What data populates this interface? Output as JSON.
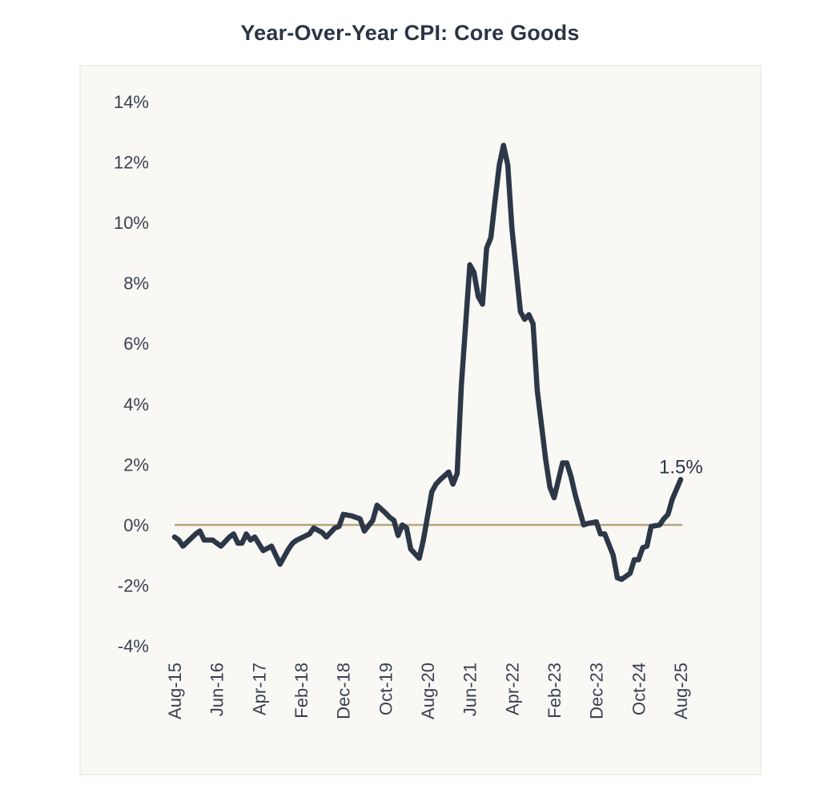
{
  "chart_data": {
    "type": "line",
    "title": "Year-Over-Year CPI: Core Goods",
    "xlabel": "",
    "ylabel": "",
    "ylim": [
      -4,
      14
    ],
    "yticks": [
      "-4%",
      "-2%",
      "0%",
      "2%",
      "4%",
      "6%",
      "8%",
      "10%",
      "12%",
      "14%"
    ],
    "ytick_values": [
      -4,
      -2,
      0,
      2,
      4,
      6,
      8,
      10,
      12,
      14
    ],
    "xticks": [
      "Aug-15",
      "Jun-16",
      "Apr-17",
      "Feb-18",
      "Dec-18",
      "Oct-19",
      "Aug-20",
      "Jun-21",
      "Apr-22",
      "Feb-23",
      "Dec-23",
      "Oct-24",
      "Aug-25"
    ],
    "xlim": [
      "2015-08",
      "2025-08"
    ],
    "grid": false,
    "reference_line": 0,
    "colors": {
      "line": "#2c3747",
      "zero_line": "#b3a57c",
      "plot_bg": "#f9f8f5",
      "plot_border": "#e4e2dc"
    },
    "annotation": "1.5%",
    "series": [
      {
        "x": [
          "2015-08",
          "2015-09",
          "2015-10",
          "2016-01",
          "2016-02",
          "2016-03",
          "2016-05",
          "2016-07",
          "2016-09",
          "2016-10",
          "2016-11",
          "2016-12",
          "2017-01",
          "2017-02",
          "2017-03",
          "2017-05",
          "2017-07",
          "2017-09",
          "2017-11",
          "2017-12",
          "2018-01",
          "2018-04",
          "2018-05",
          "2018-07",
          "2018-08",
          "2018-10",
          "2018-11",
          "2018-12",
          "2019-02",
          "2019-04",
          "2019-05",
          "2019-07",
          "2019-08",
          "2019-10",
          "2019-11",
          "2019-12",
          "2020-01",
          "2020-02",
          "2020-03",
          "2020-04",
          "2020-06",
          "2020-07",
          "2020-09",
          "2020-10",
          "2020-11",
          "2021-01",
          "2021-02",
          "2021-03",
          "2021-04",
          "2021-06",
          "2021-07",
          "2021-08",
          "2021-09",
          "2021-10",
          "2021-11",
          "2021-12",
          "2022-01",
          "2022-02",
          "2022-03",
          "2022-04",
          "2022-06",
          "2022-07",
          "2022-08",
          "2022-09",
          "2022-10",
          "2022-12",
          "2023-01",
          "2023-02",
          "2023-04",
          "2023-05",
          "2023-06",
          "2023-07",
          "2023-09",
          "2023-10",
          "2023-12",
          "2024-01",
          "2024-02",
          "2024-04",
          "2024-05",
          "2024-06",
          "2024-08",
          "2024-09",
          "2024-10",
          "2024-11",
          "2024-12",
          "2025-01",
          "2025-03",
          "2025-04",
          "2025-05",
          "2025-06",
          "2025-08"
        ],
        "values": [
          -0.4,
          -0.5,
          -0.7,
          -0.3,
          -0.2,
          -0.5,
          -0.5,
          -0.7,
          -0.4,
          -0.3,
          -0.6,
          -0.6,
          -0.3,
          -0.5,
          -0.4,
          -0.85,
          -0.7,
          -1.3,
          -0.8,
          -0.6,
          -0.5,
          -0.3,
          -0.1,
          -0.25,
          -0.4,
          -0.1,
          -0.05,
          0.35,
          0.3,
          0.2,
          -0.2,
          0.15,
          0.65,
          0.4,
          0.25,
          0.15,
          -0.35,
          0.0,
          -0.1,
          -0.8,
          -1.1,
          -0.5,
          1.1,
          1.35,
          1.5,
          1.75,
          1.35,
          1.7,
          4.6,
          8.6,
          8.35,
          7.55,
          7.3,
          9.15,
          9.5,
          10.75,
          11.9,
          12.55,
          11.9,
          9.8,
          7.05,
          6.8,
          6.95,
          6.65,
          4.45,
          2.15,
          1.25,
          0.9,
          2.05,
          2.05,
          1.6,
          1.0,
          0.0,
          0.05,
          0.1,
          -0.3,
          -0.3,
          -1.0,
          -1.75,
          -1.8,
          -1.6,
          -1.15,
          -1.15,
          -0.75,
          -0.7,
          -0.05,
          0.0,
          0.2,
          0.35,
          0.85,
          1.5
        ]
      }
    ]
  }
}
